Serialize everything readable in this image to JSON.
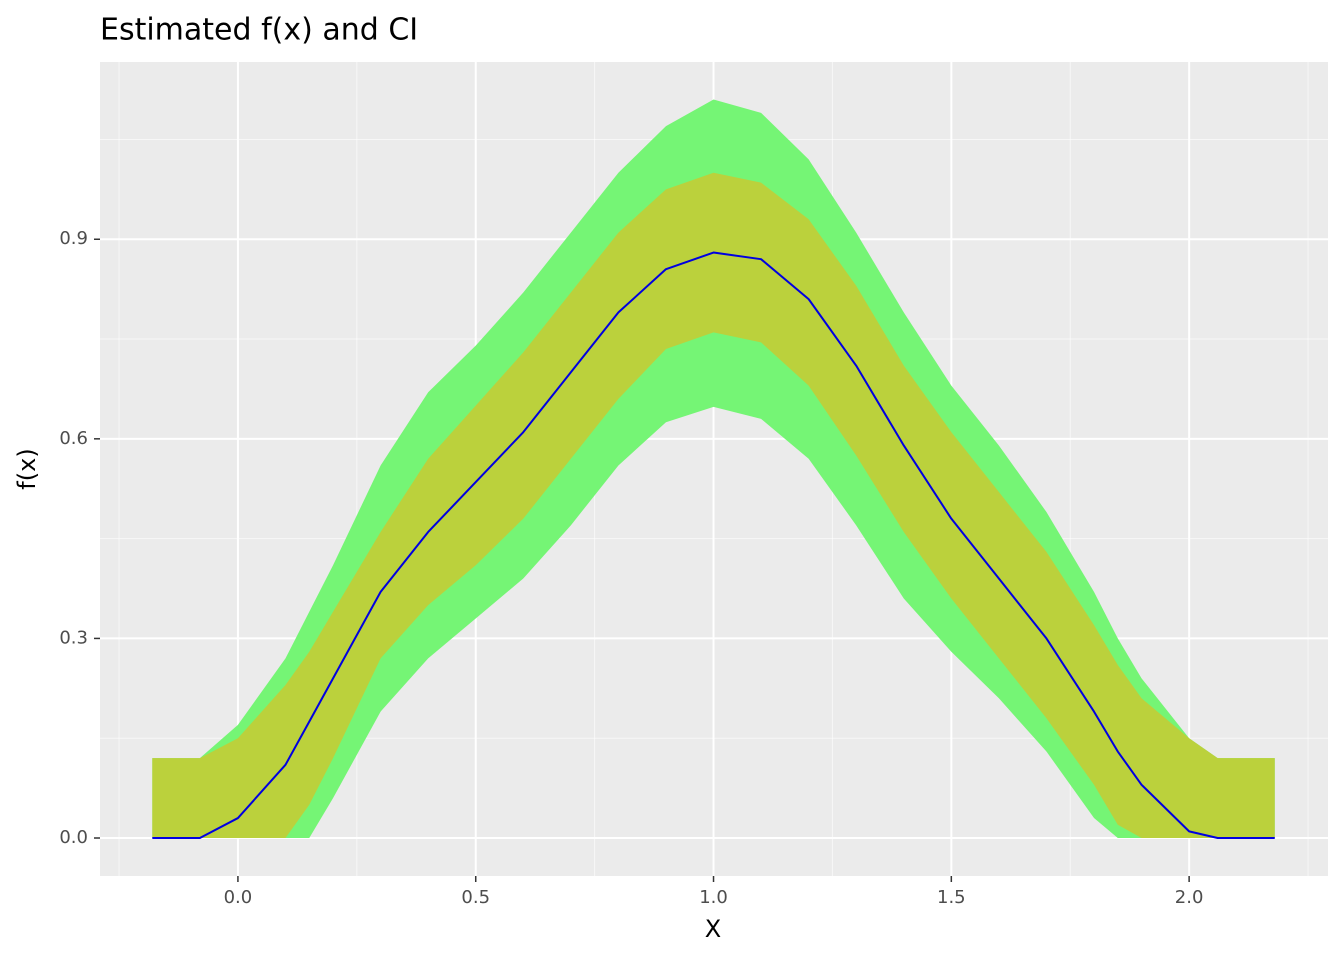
{
  "chart_data": {
    "type": "ribbon-line",
    "title": "Estimated f(x) and CI",
    "x_label": "X",
    "y_label": "f(x)",
    "x": [
      -0.18,
      -0.08,
      0,
      0.1,
      0.15,
      0.2,
      0.3,
      0.4,
      0.5,
      0.6,
      0.7,
      0.8,
      0.9,
      1.0,
      1.1,
      1.2,
      1.3,
      1.4,
      1.5,
      1.6,
      1.7,
      1.8,
      1.85,
      1.9,
      2.0,
      2.06,
      2.18
    ],
    "bands": [
      {
        "color": "#75f575",
        "upper": [
          0.12,
          0.12,
          0.17,
          0.27,
          0.34,
          0.41,
          0.56,
          0.67,
          0.74,
          0.82,
          0.91,
          1.0,
          1.07,
          1.11,
          1.09,
          1.02,
          0.91,
          0.79,
          0.68,
          0.59,
          0.49,
          0.37,
          0.3,
          0.24,
          0.15,
          0.12,
          0.12
        ],
        "lower": [
          0,
          0,
          0,
          0,
          0,
          0.06,
          0.19,
          0.27,
          0.33,
          0.39,
          0.47,
          0.56,
          0.625,
          0.648,
          0.63,
          0.57,
          0.47,
          0.36,
          0.28,
          0.21,
          0.13,
          0.03,
          0,
          0,
          0,
          0,
          0
        ]
      },
      {
        "color": "#bbd13c",
        "upper": [
          0.12,
          0.12,
          0.15,
          0.23,
          0.28,
          0.34,
          0.46,
          0.57,
          0.65,
          0.73,
          0.82,
          0.91,
          0.975,
          1.0,
          0.985,
          0.93,
          0.83,
          0.71,
          0.61,
          0.52,
          0.43,
          0.32,
          0.26,
          0.21,
          0.15,
          0.12,
          0.12
        ],
        "lower": [
          0,
          0,
          0,
          0,
          0.05,
          0.12,
          0.27,
          0.35,
          0.41,
          0.48,
          0.57,
          0.66,
          0.735,
          0.76,
          0.745,
          0.68,
          0.575,
          0.46,
          0.36,
          0.27,
          0.18,
          0.08,
          0.02,
          0,
          0,
          0,
          0
        ]
      }
    ],
    "line": {
      "color": "#0000e0",
      "values": [
        0,
        0,
        0.03,
        0.11,
        0.175,
        0.24,
        0.37,
        0.46,
        0.535,
        0.61,
        0.7,
        0.79,
        0.855,
        0.88,
        0.87,
        0.81,
        0.71,
        0.59,
        0.48,
        0.39,
        0.3,
        0.19,
        0.13,
        0.08,
        0.01,
        0,
        0
      ]
    },
    "xlim": [
      -0.29,
      2.292
    ],
    "ylim": [
      -0.0571,
      1.1664
    ],
    "xticks": [
      {
        "value": 0,
        "label": "0.0"
      },
      0.5,
      {
        "value": 1,
        "label": "1.0"
      },
      1.5,
      {
        "value": 2,
        "label": "2.0"
      }
    ],
    "yticks": [
      {
        "value": 0,
        "label": "0.0"
      },
      0.3,
      0.6,
      0.9
    ],
    "x_minor_ticks": [
      -0.25,
      0.25,
      0.75,
      1.25,
      1.75,
      2.25
    ],
    "y_minor_ticks": [
      0.15,
      0.45,
      0.75,
      1.05
    ],
    "grid": true
  }
}
